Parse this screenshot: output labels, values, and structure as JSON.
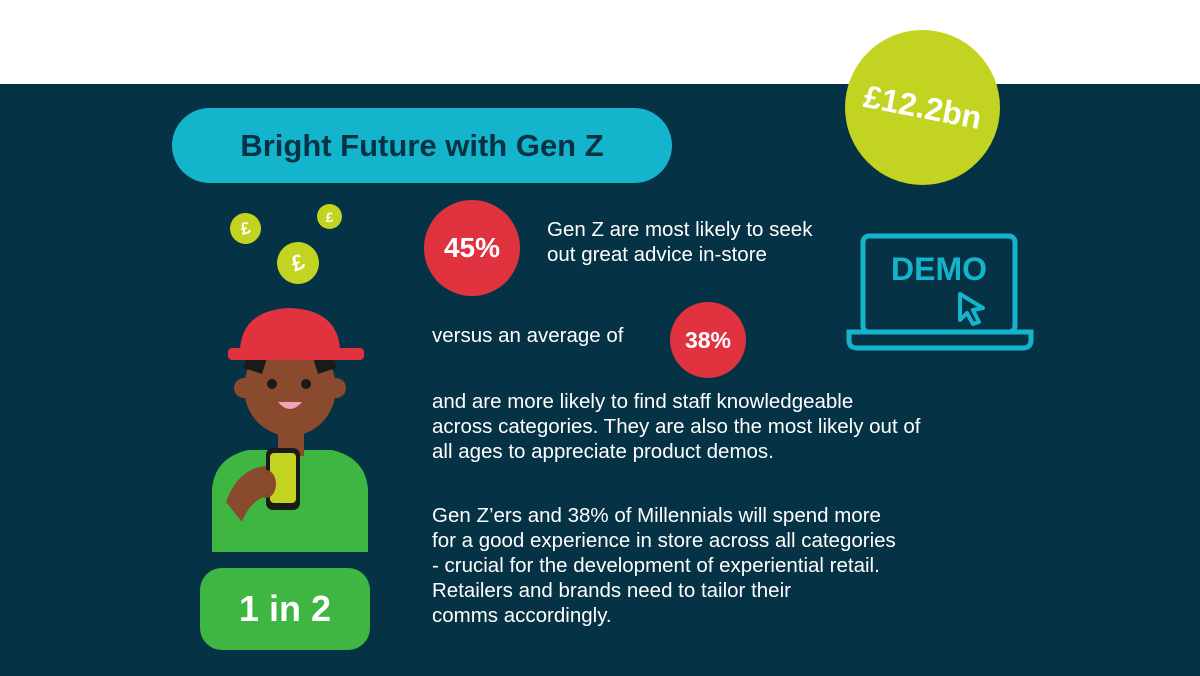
{
  "title": "Bright Future with Gen Z",
  "headline_stat": "£12.2bn",
  "stat_45": "45%",
  "stat_45_text": [
    "Gen Z are most likely to seek",
    "out great advice in-store"
  ],
  "versus_text": "versus an average of",
  "stat_38": "38%",
  "paragraph_1": [
    "and are more likely to find staff knowledgeable",
    "across categories. They are also the most likely out of",
    "all ages to appreciate product demos."
  ],
  "paragraph_2": [
    "Gen Z’ers and 38% of Millennials will spend more",
    "for a good experience in store across all categories",
    "- crucial for the development of experiential retail.",
    "Retailers and brands need to tailor their",
    "comms accordingly."
  ],
  "ratio_stat": "1 in 2",
  "demo_label": "DEMO",
  "coin_symbol": "£",
  "colors": {
    "navy": "#053244",
    "teal": "#14b4cc",
    "lime": "#c2d421",
    "red": "#e1323f",
    "green": "#3fb542"
  },
  "icons": [
    "pound-coin-icon",
    "person-with-phone-illustration",
    "demo-laptop-icon"
  ]
}
